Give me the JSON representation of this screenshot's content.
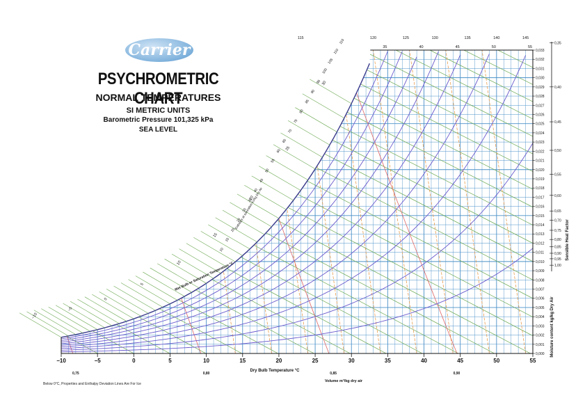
{
  "header": {
    "logo": "Carrier",
    "title": "PSYCHROMETRIC CHART",
    "subtitle": "NORMAL TEMPERATURES",
    "units": "SI METRIC UNITS",
    "pressure": "Barometric Pressure 101,325 kPa",
    "altitude": "SEA LEVEL"
  },
  "footnote": "Below 0°C, Properties and Enthalpy Deviation Lines Are For Ice",
  "colors": {
    "grid": "#4a90c8",
    "saturation": "#3a3a8c",
    "enthalpy": "#6aa84f",
    "volume": "#e06666",
    "rh": "#6a5acd",
    "deviation": "#e69138",
    "axis": "#111111"
  },
  "chart_data": {
    "type": "psychrometric",
    "xlabel": "Dry Bulb Temperature   °C",
    "ylabel": "Moisture content  kg/kg Dry Air",
    "sensible_label": "Sensible Heat Factor",
    "volume_label": "Volume m³/kg dry air",
    "wetbulb_label": "Wet Bulb or Saturation Temperature  °C",
    "enthalpy_label": "Enthalpy at saturation kJ/kg Dry Air",
    "xlim": [
      -10,
      55
    ],
    "ylim": [
      0,
      0.033
    ],
    "x_ticks": [
      -10,
      -5,
      0,
      5,
      10,
      15,
      20,
      25,
      30,
      35,
      40,
      45,
      50,
      55
    ],
    "x_tick_labels": [
      "−10",
      "−5",
      "0",
      "5",
      "10",
      "15",
      "20",
      "25",
      "30",
      "35",
      "40",
      "45",
      "50",
      "55"
    ],
    "y_ticks": [
      0.0,
      0.001,
      0.002,
      0.003,
      0.004,
      0.005,
      0.006,
      0.007,
      0.008,
      0.009,
      0.01,
      0.011,
      0.012,
      0.013,
      0.014,
      0.015,
      0.016,
      0.017,
      0.018,
      0.019,
      0.02,
      0.021,
      0.022,
      0.023,
      0.024,
      0.025,
      0.026,
      0.027,
      0.028,
      0.029,
      0.03,
      0.031,
      0.032,
      0.033
    ],
    "y_tick_labels": [
      "0,000",
      "0,001",
      "0,002",
      "0,003",
      "0,004",
      "0,005",
      "0,006",
      "0,007",
      "0,008",
      "0,009",
      "0,010",
      "0,011",
      "0,012",
      "0,013",
      "0,014",
      "0,015",
      "0,016",
      "0,017",
      "0,018",
      "0,019",
      "0,020",
      "0,021",
      "0,022",
      "0,023",
      "0,024",
      "0,025",
      "0,026",
      "0,027",
      "0,028",
      "0,029",
      "0,030",
      "0,031",
      "0,032",
      "0,033"
    ],
    "sensible_heat_factors": [
      {
        "label": "0,35",
        "w": 0.0338
      },
      {
        "label": "0,40",
        "w": 0.029
      },
      {
        "label": "0,45",
        "w": 0.0252
      },
      {
        "label": "0,50",
        "w": 0.0221
      },
      {
        "label": "0,55",
        "w": 0.0195
      },
      {
        "label": "0,60",
        "w": 0.0172
      },
      {
        "label": "0,65",
        "w": 0.0155
      },
      {
        "label": "0,70",
        "w": 0.0145
      },
      {
        "label": "0,75",
        "w": 0.0134
      },
      {
        "label": "0,80",
        "w": 0.0124
      },
      {
        "label": "0,85",
        "w": 0.0116
      },
      {
        "label": "0,90",
        "w": 0.0109
      },
      {
        "label": "0,95",
        "w": 0.0103
      },
      {
        "label": "1,00",
        "w": 0.0096
      }
    ],
    "volume_marks": [
      {
        "label": "0,75",
        "t": -8.0
      },
      {
        "label": "0,80",
        "t": 10.0
      },
      {
        "label": "0,85",
        "t": 27.5
      },
      {
        "label": "0,90",
        "t": 44.5
      }
    ],
    "top_enthalpy_labels": [
      {
        "label": "115",
        "t": 23
      },
      {
        "label": "120",
        "t": 33
      },
      {
        "label": "125",
        "t": 37.5
      },
      {
        "label": "130",
        "t": 41.5
      },
      {
        "label": "135",
        "t": 46
      },
      {
        "label": "140",
        "t": 50
      },
      {
        "label": "145",
        "t": 54
      }
    ],
    "top_dry_bulb_labels": [
      {
        "label": "35",
        "t": 35
      },
      {
        "label": "40",
        "t": 40
      },
      {
        "label": "45",
        "t": 45
      },
      {
        "label": "50",
        "t": 50
      },
      {
        "label": "55",
        "t": 55
      }
    ],
    "wet_bulb_labels": [
      "−10",
      "−5",
      "0",
      "5",
      "10",
      "15",
      "20",
      "25",
      "30"
    ],
    "enthalpy_scale_labels": [
      "10",
      "15",
      "20",
      "25",
      "30",
      "35",
      "40",
      "45",
      "50",
      "55",
      "60",
      "65",
      "70",
      "75",
      "80",
      "85",
      "90",
      "95",
      "100",
      "105",
      "110",
      "115"
    ],
    "rh_curves": [
      10,
      20,
      30,
      40,
      50,
      60,
      70,
      80,
      90
    ],
    "grid": true
  }
}
